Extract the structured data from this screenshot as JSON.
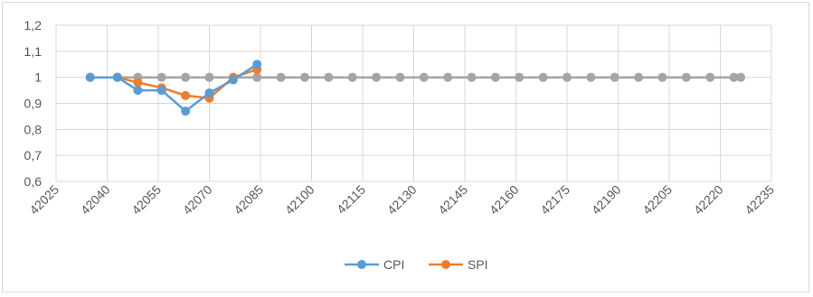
{
  "chart_data": {
    "type": "line",
    "title": "",
    "xlabel": "",
    "ylabel": "",
    "xlim": [
      42025,
      42235
    ],
    "ylim": [
      0.6,
      1.2
    ],
    "x_ticks": [
      42025,
      42040,
      42055,
      42070,
      42085,
      42100,
      42115,
      42130,
      42145,
      42160,
      42175,
      42190,
      42205,
      42220,
      42235
    ],
    "y_ticks": [
      0.6,
      0.7,
      0.8,
      0.9,
      1.0,
      1.1,
      1.2
    ],
    "x_tick_labels": [
      "42025",
      "42040",
      "42055",
      "42070",
      "42085",
      "42100",
      "42115",
      "42130",
      "42145",
      "42160",
      "42175",
      "42190",
      "42205",
      "42220",
      "42235"
    ],
    "y_tick_labels": [
      "0,6",
      "0,7",
      "0,8",
      "0,9",
      "1",
      "1,1",
      "1,2"
    ],
    "grid": true,
    "legend_position": "bottom",
    "series": [
      {
        "name": "CPI",
        "color": "#5b9bd5",
        "x": [
          42035,
          42043,
          42049,
          42056,
          42063,
          42070,
          42077,
          42084
        ],
        "values": [
          1.0,
          1.0,
          0.95,
          0.95,
          0.87,
          0.94,
          0.99,
          1.05
        ]
      },
      {
        "name": "SPI",
        "color": "#ed7d31",
        "x": [
          42035,
          42043,
          42049,
          42056,
          42063,
          42070,
          42077,
          42084
        ],
        "values": [
          1.0,
          1.0,
          0.98,
          0.96,
          0.93,
          0.92,
          1.0,
          1.03
        ]
      },
      {
        "name": "",
        "color": "#a5a5a5",
        "x": [
          42035,
          42043,
          42049,
          42056,
          42063,
          42070,
          42077,
          42084,
          42091,
          42098,
          42105,
          42112,
          42119,
          42126,
          42133,
          42140,
          42147,
          42154,
          42161,
          42168,
          42175,
          42182,
          42189,
          42196,
          42203,
          42210,
          42217,
          42224,
          42226
        ],
        "values": [
          1,
          1,
          1,
          1,
          1,
          1,
          1,
          1,
          1,
          1,
          1,
          1,
          1,
          1,
          1,
          1,
          1,
          1,
          1,
          1,
          1,
          1,
          1,
          1,
          1,
          1,
          1,
          1,
          1
        ]
      }
    ]
  }
}
